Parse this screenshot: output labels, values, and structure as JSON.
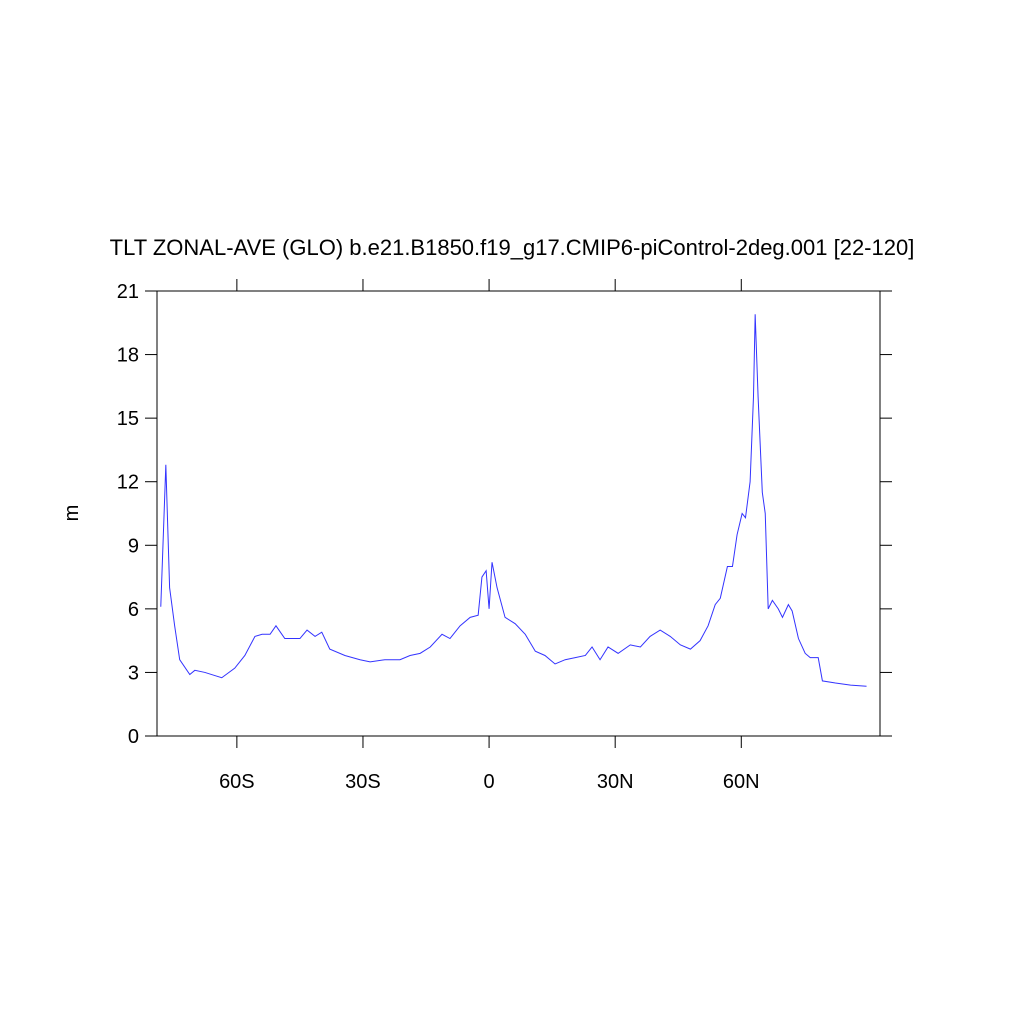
{
  "chart_data": {
    "type": "line",
    "title": "TLT ZONAL-AVE (GLO) b.e21.B1850.f19_g17.CMIP6-piControl-2deg.001 [22-120]",
    "y_label": "m",
    "x": [
      -78.1,
      -76.9,
      -76.0,
      -74.8,
      -73.6,
      -71.2,
      -70.0,
      -67.6,
      -66.0,
      -63.6,
      -60.5,
      -58.1,
      -55.7,
      -54.0,
      -52.1,
      -50.7,
      -48.6,
      -45.0,
      -43.3,
      -41.4,
      -39.8,
      -37.9,
      -34.3,
      -30.7,
      -28.3,
      -24.8,
      -21.2,
      -18.8,
      -16.4,
      -14.0,
      -11.2,
      -9.3,
      -6.9,
      -4.5,
      -2.6,
      -1.7,
      -0.7,
      0,
      0.7,
      1.9,
      3.8,
      6.2,
      8.6,
      11.0,
      13.3,
      15.7,
      18.1,
      20.5,
      22.9,
      24.5,
      26.4,
      28.3,
      30.7,
      33.6,
      36.0,
      38.3,
      40.7,
      43.1,
      45.5,
      47.9,
      50.2,
      52.1,
      53.8,
      55.0,
      56.7,
      57.9,
      59.0,
      60.2,
      61.0,
      62.1,
      62.9,
      63.3,
      64.0,
      65.0,
      65.7,
      66.4,
      67.4,
      68.8,
      69.8,
      71.2,
      72.1,
      73.6,
      75.2,
      76.4,
      78.3,
      79.3,
      82.4,
      86.0,
      89.8
    ],
    "series": [
      {
        "name": "TLT",
        "color": "#3333ff",
        "values": [
          6.1,
          12.8,
          7.0,
          5.2,
          3.6,
          2.9,
          3.1,
          3.0,
          2.9,
          2.75,
          3.2,
          3.8,
          4.7,
          4.8,
          4.8,
          5.2,
          4.6,
          4.6,
          5.0,
          4.7,
          4.9,
          4.1,
          3.8,
          3.6,
          3.5,
          3.6,
          3.6,
          3.8,
          3.9,
          4.2,
          4.8,
          4.6,
          5.2,
          5.6,
          5.7,
          7.5,
          7.8,
          6.0,
          8.2,
          7.0,
          5.6,
          5.3,
          4.8,
          4.0,
          3.8,
          3.4,
          3.6,
          3.7,
          3.8,
          4.2,
          3.6,
          4.2,
          3.9,
          4.3,
          4.2,
          4.7,
          5.0,
          4.7,
          4.3,
          4.1,
          4.5,
          5.2,
          6.2,
          6.5,
          8.0,
          8.0,
          9.5,
          10.5,
          10.3,
          12.0,
          16.0,
          19.9,
          16.0,
          11.5,
          10.5,
          6.0,
          6.4,
          6.0,
          5.6,
          6.2,
          5.9,
          4.6,
          3.9,
          3.7,
          3.7,
          2.6,
          2.5,
          2.4,
          2.35
        ]
      }
    ],
    "xlim": [
      -79,
      93
    ],
    "xticks": [
      {
        "value": -60,
        "label": "60S"
      },
      {
        "value": -30,
        "label": "30S"
      },
      0,
      {
        "value": 30,
        "label": "30N"
      },
      {
        "value": 60,
        "label": "60N"
      }
    ],
    "ylim": [
      0,
      21
    ],
    "yticks": [
      0,
      3,
      6,
      9,
      12,
      15,
      18,
      21
    ]
  }
}
